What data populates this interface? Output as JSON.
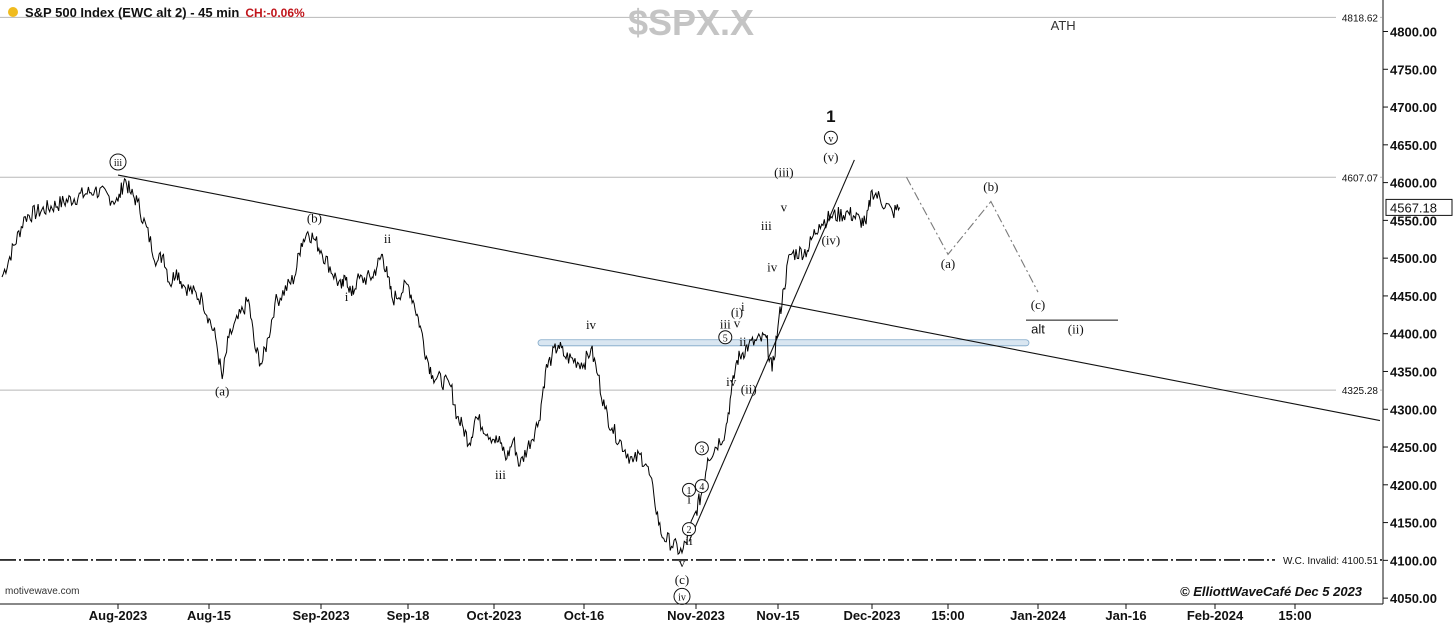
{
  "header": {
    "title": "S&P 500 Index (EWC alt 2) - 45 min",
    "change": "CH:-0.06%",
    "symbol": "$SPX.X"
  },
  "footer": {
    "source": "motivewave.com",
    "credit": "© ElliottWaveCafé Dec 5 2023"
  },
  "colors": {
    "price_line": "#000000",
    "reference_line": "#b8b8b8",
    "support_band": "#b9d1e6",
    "projection": "#7a7a7a",
    "change_text": "#c0151b",
    "indicator_dot": "#f0bb1e"
  },
  "chart_data": {
    "type": "line",
    "title": "S&P 500 Index (EWC alt 2) - 45 min",
    "ylim": [
      4040,
      4825
    ],
    "x_ticks": [
      "Aug-2023",
      "Aug-15",
      "Sep-2023",
      "Sep-18",
      "Oct-2023",
      "Oct-16",
      "Nov-2023",
      "Nov-15",
      "Dec-2023",
      "15:00",
      "Jan-2024",
      "Jan-16",
      "Feb-2024",
      "15:00"
    ],
    "y_ticks": [
      "4800.00",
      "4750.00",
      "4700.00",
      "4650.00",
      "4600.00",
      "4550.00",
      "4500.00",
      "4450.00",
      "4400.00",
      "4350.00",
      "4300.00",
      "4250.00",
      "4200.00",
      "4150.00",
      "4100.00",
      "4050.00"
    ],
    "last_price": "4567.18",
    "reference_levels": [
      {
        "value": 4818.62,
        "label": "4818.62",
        "note": "ATH"
      },
      {
        "value": 4607.07,
        "label": "4607.07",
        "note": ""
      },
      {
        "value": 4325.28,
        "label": "4325.28",
        "note": ""
      },
      {
        "value": 4100.51,
        "label": "W.C. Invalid: 4100.51",
        "note": ""
      }
    ],
    "support_zone": [
      4384,
      4392
    ],
    "series": [
      {
        "name": "S&P 500",
        "points": [
          [
            "Jul-27",
            4475
          ],
          [
            "Jul-28",
            4555
          ],
          [
            "Jul-31",
            4590
          ],
          [
            "Aug-01",
            4575
          ],
          [
            "Aug-02",
            4605
          ],
          [
            "Aug-03",
            4585
          ],
          [
            "Aug-04",
            4575
          ],
          [
            "Aug-07",
            4495
          ],
          [
            "Aug-08",
            4505
          ],
          [
            "Aug-09",
            4465
          ],
          [
            "Aug-10",
            4485
          ],
          [
            "Aug-11",
            4465
          ],
          [
            "Aug-14",
            4445
          ],
          [
            "Aug-15",
            4420
          ],
          [
            "Aug-16",
            4395
          ],
          [
            "Aug-17",
            4340
          ],
          [
            "Aug-18",
            4395
          ],
          [
            "Aug-21",
            4445
          ],
          [
            "Aug-22",
            4380
          ],
          [
            "Aug-23",
            4360
          ],
          [
            "Aug-24",
            4395
          ],
          [
            "Aug-25",
            4440
          ],
          [
            "Aug-28",
            4475
          ],
          [
            "Aug-29",
            4520
          ],
          [
            "Aug-30",
            4535
          ],
          [
            "Aug-31",
            4525
          ],
          [
            "Sep-01",
            4510
          ],
          [
            "Sep-05",
            4460
          ],
          [
            "Sep-06",
            4475
          ],
          [
            "Sep-07",
            4450
          ],
          [
            "Sep-08",
            4470
          ],
          [
            "Sep-11",
            4475
          ],
          [
            "Sep-12",
            4490
          ],
          [
            "Sep-13",
            4505
          ],
          [
            "Sep-14",
            4475
          ],
          [
            "Sep-15",
            4445
          ],
          [
            "Sep-18",
            4465
          ],
          [
            "Sep-19",
            4440
          ],
          [
            "Sep-20",
            4410
          ],
          [
            "Sep-21",
            4370
          ],
          [
            "Sep-22",
            4345
          ],
          [
            "Sep-25",
            4330
          ],
          [
            "Sep-26",
            4290
          ],
          [
            "Sep-27",
            4275
          ],
          [
            "Sep-28",
            4255
          ],
          [
            "Sep-29",
            4290
          ],
          [
            "Oct-02",
            4260
          ],
          [
            "Oct-03",
            4255
          ],
          [
            "Oct-04",
            4235
          ],
          [
            "Oct-05",
            4260
          ],
          [
            "Oct-06",
            4225
          ],
          [
            "Oct-09",
            4285
          ],
          [
            "Oct-10",
            4350
          ],
          [
            "Oct-11",
            4370
          ],
          [
            "Oct-12",
            4385
          ],
          [
            "Oct-13",
            4370
          ],
          [
            "Oct-16",
            4360
          ],
          [
            "Oct-17",
            4380
          ],
          [
            "Oct-18",
            4345
          ],
          [
            "Oct-19",
            4300
          ],
          [
            "Oct-20",
            4275
          ],
          [
            "Oct-23",
            4230
          ],
          [
            "Oct-24",
            4240
          ],
          [
            "Oct-25",
            4225
          ],
          [
            "Oct-26",
            4185
          ],
          [
            "Oct-27",
            4135
          ],
          [
            "Oct-30",
            4110
          ],
          [
            "Oct-31",
            4135
          ],
          [
            "Nov-01",
            4165
          ],
          [
            "Nov-02",
            4190
          ],
          [
            "Nov-03",
            4235
          ],
          [
            "Nov-06",
            4270
          ],
          [
            "Nov-07",
            4320
          ],
          [
            "Nov-08",
            4365
          ],
          [
            "Nov-09",
            4375
          ],
          [
            "Nov-10",
            4385
          ],
          [
            "Nov-13",
            4395
          ],
          [
            "Nov-14",
            4350
          ],
          [
            "Nov-15",
            4410
          ],
          [
            "Nov-16",
            4460
          ],
          [
            "Nov-17",
            4505
          ],
          [
            "Nov-20",
            4510
          ],
          [
            "Nov-21",
            4530
          ],
          [
            "Nov-22",
            4545
          ],
          [
            "Nov-24",
            4555
          ],
          [
            "Nov-27",
            4560
          ],
          [
            "Nov-28",
            4555
          ],
          [
            "Nov-29",
            4550
          ],
          [
            "Nov-30",
            4545
          ],
          [
            "Dec-01",
            4590
          ],
          [
            "Dec-04",
            4560
          ],
          [
            "Dec-05",
            4567
          ]
        ]
      },
      {
        "name": "projection",
        "points": [
          [
            "Dec-06",
            4607
          ],
          [
            "Dec-12",
            4505
          ],
          [
            "Dec-22",
            4575
          ],
          [
            "Jan-02",
            4455
          ]
        ]
      }
    ],
    "trendlines": [
      {
        "from": [
          "Aug-01",
          4610
        ],
        "to": [
          "Feb-23",
          4285
        ]
      },
      {
        "from": [
          "Oct-31",
          4125
        ],
        "to": [
          "Nov-28",
          4630
        ]
      }
    ],
    "annotations": [
      {
        "text": "iii",
        "at": [
          "Aug-01",
          4622
        ],
        "circled": true
      },
      {
        "text": "(a)",
        "at": [
          "Aug-17",
          4318
        ],
        "circled": false
      },
      {
        "text": "(b)",
        "at": [
          "Aug-31",
          4547
        ],
        "circled": false
      },
      {
        "text": "i",
        "at": [
          "Sep-06",
          4443
        ],
        "circled": false
      },
      {
        "text": "ii",
        "at": [
          "Sep-14",
          4520
        ],
        "circled": false
      },
      {
        "text": "iii",
        "at": [
          "Oct-03",
          4208
        ],
        "circled": false
      },
      {
        "text": "iv",
        "at": [
          "Oct-17",
          4406
        ],
        "circled": false
      },
      {
        "text": "v",
        "at": [
          "Oct-30",
          4091
        ],
        "circled": false
      },
      {
        "text": "(c)",
        "at": [
          "Oct-30",
          4069
        ],
        "circled": false
      },
      {
        "text": "iv",
        "at": [
          "Oct-30",
          4047
        ],
        "circled": true
      },
      {
        "text": "1",
        "at": [
          "Oct-31",
          4188
        ],
        "circled": true
      },
      {
        "text": "i",
        "at": [
          "Oct-31",
          4175
        ],
        "circled": false
      },
      {
        "text": "2",
        "at": [
          "Oct-31",
          4136
        ],
        "circled": true
      },
      {
        "text": "ii",
        "at": [
          "Oct-31",
          4120
        ],
        "circled": false
      },
      {
        "text": "3",
        "at": [
          "Nov-02",
          4243
        ],
        "circled": true
      },
      {
        "text": "4",
        "at": [
          "Nov-02",
          4193
        ],
        "circled": true
      },
      {
        "text": "iii",
        "at": [
          "Nov-06",
          4407
        ],
        "circled": false
      },
      {
        "text": "5",
        "at": [
          "Nov-06",
          4390
        ],
        "circled": true
      },
      {
        "text": "iv",
        "at": [
          "Nov-07",
          4331
        ],
        "circled": false
      },
      {
        "text": "(i)",
        "at": [
          "Nov-08",
          4423
        ],
        "circled": false
      },
      {
        "text": "v",
        "at": [
          "Nov-08",
          4408
        ],
        "circled": false
      },
      {
        "text": "i",
        "at": [
          "Nov-09",
          4430
        ],
        "circled": false
      },
      {
        "text": "ii",
        "at": [
          "Nov-09",
          4384
        ],
        "circled": false
      },
      {
        "text": "(ii)",
        "at": [
          "Nov-10",
          4321
        ],
        "circled": false
      },
      {
        "text": "iii",
        "at": [
          "Nov-13",
          4537
        ],
        "circled": false
      },
      {
        "text": "iv",
        "at": [
          "Nov-14",
          4482
        ],
        "circled": false
      },
      {
        "text": "v",
        "at": [
          "Nov-16",
          4562
        ],
        "circled": false
      },
      {
        "text": "(iii)",
        "at": [
          "Nov-16",
          4608
        ],
        "circled": false
      },
      {
        "text": "(iv)",
        "at": [
          "Nov-24",
          4518
        ],
        "circled": false
      },
      {
        "text": "(v)",
        "at": [
          "Nov-24",
          4628
        ],
        "circled": false
      },
      {
        "text": "v",
        "at": [
          "Nov-24",
          4654
        ],
        "circled": true
      },
      {
        "text": "1",
        "at": [
          "Nov-24",
          4680
        ],
        "circled": false
      },
      {
        "text": "(a)",
        "at": [
          "Dec-12",
          4487
        ],
        "circled": false
      },
      {
        "text": "(b)",
        "at": [
          "Dec-22",
          4589
        ],
        "circled": false
      },
      {
        "text": "(c)",
        "at": [
          "Jan-02",
          4433
        ],
        "circled": false
      },
      {
        "text": "alt",
        "at": [
          "Jan-02",
          4400
        ],
        "circled": false
      },
      {
        "text": "(ii)",
        "at": [
          "Jan-08",
          4400
        ],
        "circled": false
      },
      {
        "text": "ATH",
        "at": [
          "Jan-06",
          4802
        ],
        "circled": false
      }
    ]
  }
}
